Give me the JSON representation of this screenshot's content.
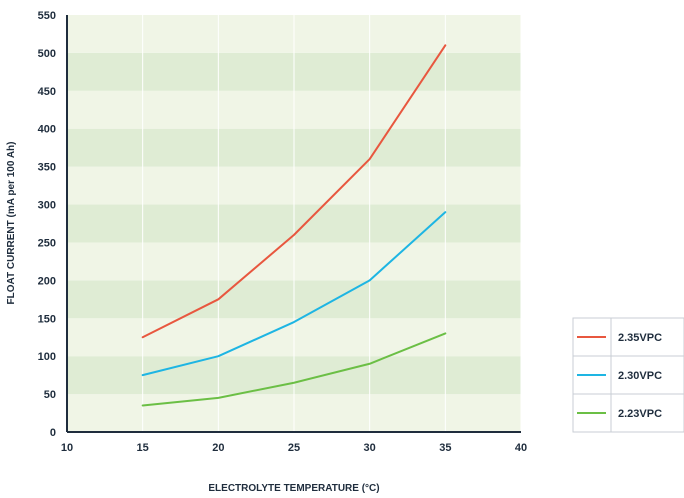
{
  "chart_data": {
    "type": "line",
    "title": "",
    "xlabel": "ELECTROLYTE TEMPERATURE (°C)",
    "ylabel": "FLOAT CURRENT (mA per 100 Ah)",
    "xlim": [
      10,
      40
    ],
    "ylim": [
      0,
      550
    ],
    "xticks": [
      10,
      15,
      20,
      25,
      30,
      35,
      40
    ],
    "yticks": [
      0,
      50,
      100,
      150,
      200,
      250,
      300,
      350,
      400,
      450,
      500,
      550
    ],
    "grid": true,
    "legend_position": "bottom-right outside",
    "x": [
      15,
      20,
      25,
      30,
      35
    ],
    "series": [
      {
        "name": "2.35VPC",
        "color": "#e8573f",
        "values": [
          125,
          175,
          260,
          360,
          510
        ]
      },
      {
        "name": "2.30VPC",
        "color": "#1eb5e3",
        "values": [
          75,
          100,
          145,
          200,
          290
        ]
      },
      {
        "name": "2.23VPC",
        "color": "#6bbf45",
        "values": [
          35,
          45,
          65,
          90,
          130
        ]
      }
    ],
    "colors": {
      "band_light": "#f0f5e6",
      "band_dark": "#dfecd4",
      "axis": "#1f2d3d"
    }
  }
}
